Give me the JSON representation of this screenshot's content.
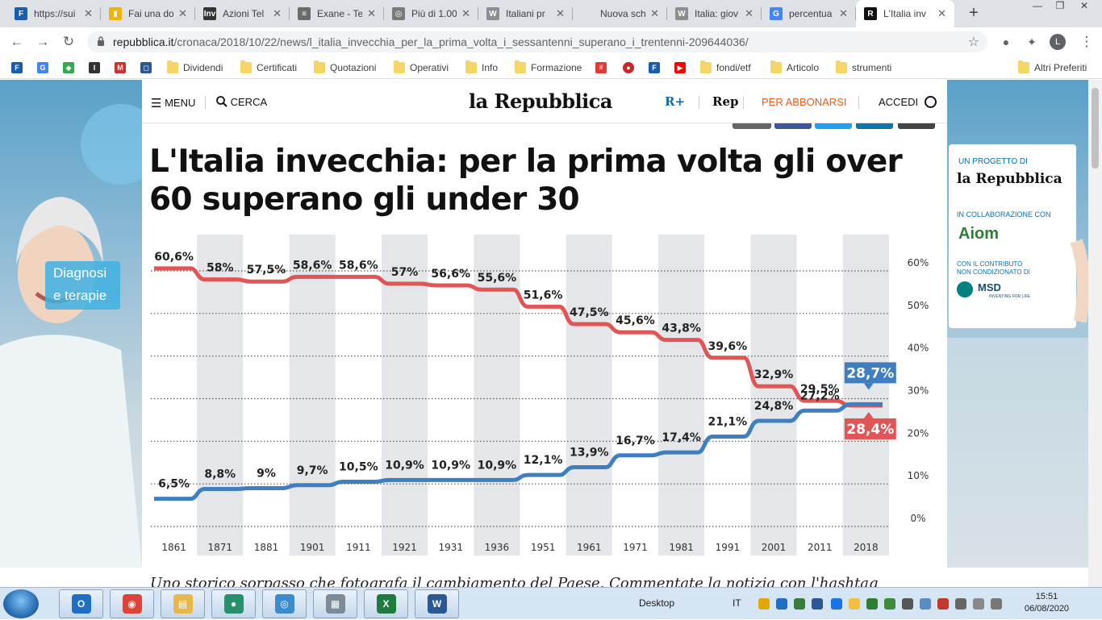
{
  "browser": {
    "tabs": [
      {
        "label": "https://sui",
        "icon": "F",
        "color": "#1a5dab"
      },
      {
        "label": "Fai una do",
        "icon": "▮",
        "color": "#f2b300"
      },
      {
        "label": "Azioni Tel",
        "icon": "Inv",
        "color": "#333333"
      },
      {
        "label": "Exane - Te",
        "icon": "≡",
        "color": "#6b6b6b"
      },
      {
        "label": "Più di 1.00",
        "icon": "◎",
        "color": "#7a7a7a"
      },
      {
        "label": "Italiani pr",
        "icon": "W",
        "color": "#8d8d8d"
      },
      {
        "label": "Nuova scheda",
        "icon": "",
        "color": "#dee1e6"
      },
      {
        "label": "Italia: giov",
        "icon": "W",
        "color": "#8d8d8d"
      },
      {
        "label": "percentua",
        "icon": "G",
        "color": "#4285f4"
      },
      {
        "label": "L'Italia inv",
        "icon": "R",
        "color": "#111111"
      }
    ],
    "new_tab": "+",
    "url_host": "repubblica.it",
    "url_path": "/cronaca/2018/10/22/news/l_italia_invecchia_per_la_prima_volta_i_sessantenni_superano_i_trentenni-209644036/",
    "profile_initial": "L",
    "bookmarks": [
      "Dividendi",
      "Certificati",
      "Quotazioni",
      "Operativi",
      "Info",
      "Formazione",
      "fondi/etf",
      "Articolo",
      "strumenti",
      "Altri Preferiti"
    ]
  },
  "site": {
    "menu": "MENU",
    "search": "CERCA",
    "logo": "la Repubblica",
    "rplus": "R+",
    "rep": "Rep",
    "subscribe": "PER ABBONARSI",
    "login": "ACCEDI"
  },
  "ads": {
    "left_line1": "Diagnosi",
    "left_line2": "e terapie",
    "right_project": "UN PROGETTO DI",
    "right_brand": "la Repubblica",
    "right_collab": "IN COLLABORAZIONE CON",
    "right_collab_brand": "Aiom",
    "right_contrib": "CON IL CONTRIBUTO NON CONDIZIONATO DI",
    "right_sponsor": "MSD",
    "right_sponsor_sub": "INVENTING FOR LIFE"
  },
  "article": {
    "headline": "L'Italia invecchia: per la prima volta gli over 60 superano gli under 30",
    "caption": "Uno storico sorpasso che fotografa il cambiamento del Paese. Commentate la notizia con l'hashtag"
  },
  "chart_data": {
    "type": "line",
    "x": [
      "1861",
      "1871",
      "1881",
      "1901",
      "1911",
      "1921",
      "1931",
      "1936",
      "1951",
      "1961",
      "1971",
      "1981",
      "1991",
      "2001",
      "2011",
      "2018"
    ],
    "yticks": [
      "60%",
      "50%",
      "40%",
      "30%",
      "20%",
      "10%",
      "0%"
    ],
    "ylim": [
      0,
      60
    ],
    "grid": true,
    "series": [
      {
        "color": "#e05555",
        "values": [
          60.6,
          58,
          57.5,
          58.6,
          58.6,
          57,
          56.6,
          55.6,
          51.6,
          47.5,
          45.6,
          43.8,
          39.6,
          32.9,
          29.5,
          28.4
        ],
        "labels": [
          "60,6%",
          "58%",
          "57,5%",
          "58,6%",
          "58,6%",
          "57%",
          "56,6%",
          "55,6%",
          "51,6%",
          "47,5%",
          "45,6%",
          "43,8%",
          "39,6%",
          "32,9%",
          "29,5%",
          "28,4%"
        ]
      },
      {
        "color": "#3f7fbf",
        "values": [
          6.5,
          8.8,
          9,
          9.7,
          10.5,
          10.9,
          10.9,
          10.9,
          12.1,
          13.9,
          16.7,
          17.4,
          21.1,
          24.8,
          27.2,
          28.7
        ],
        "labels": [
          "6,5%",
          "8,8%",
          "9%",
          "9,7%",
          "10,5%",
          "10,9%",
          "10,9%",
          "10,9%",
          "12,1%",
          "13,9%",
          "16,7%",
          "17,4%",
          "21,1%",
          "24,8%",
          "27,2%",
          "28,7%"
        ]
      }
    ]
  },
  "taskbar": {
    "desktop": "Desktop",
    "lang": "IT",
    "time": "15:51",
    "date": "06/08/2020",
    "apps": [
      {
        "name": "outlook",
        "color": "#1f6fc5",
        "glyph": "O"
      },
      {
        "name": "chrome",
        "color": "#db4437",
        "glyph": "◉"
      },
      {
        "name": "explorer",
        "color": "#e6b84a",
        "glyph": "▤"
      },
      {
        "name": "app-green",
        "color": "#2a8f6b",
        "glyph": "●"
      },
      {
        "name": "app-globe",
        "color": "#3a8ccf",
        "glyph": "◎"
      },
      {
        "name": "calculator",
        "color": "#7d8a99",
        "glyph": "▦"
      },
      {
        "name": "excel",
        "color": "#1f7a3f",
        "glyph": "X"
      },
      {
        "name": "word",
        "color": "#2b5797",
        "glyph": "W"
      }
    ]
  }
}
